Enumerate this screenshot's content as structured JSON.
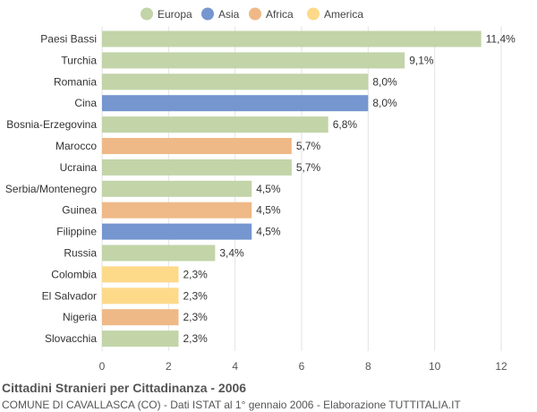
{
  "chart_data": {
    "type": "bar",
    "orientation": "horizontal",
    "title": "Cittadini Stranieri per Cittadinanza - 2006",
    "subtitle": "COMUNE DI CAVALLASCA (CO) - Dati ISTAT al 1° gennaio 2006 - Elaborazione TUTTITALIA.IT",
    "xlim": [
      0,
      12
    ],
    "xticks": [
      "0",
      "2",
      "4",
      "6",
      "8",
      "10",
      "12"
    ],
    "grid": true,
    "legend_position": "top",
    "legend": [
      {
        "name": "Europa",
        "color": "#c2d4a8"
      },
      {
        "name": "Asia",
        "color": "#7596cf"
      },
      {
        "name": "Africa",
        "color": "#efb987"
      },
      {
        "name": "America",
        "color": "#fdd98a"
      }
    ],
    "bars": [
      {
        "category": "Paesi Bassi",
        "value": 11.4,
        "label": "11,4%",
        "group": "Europa"
      },
      {
        "category": "Turchia",
        "value": 9.1,
        "label": "9,1%",
        "group": "Europa"
      },
      {
        "category": "Romania",
        "value": 8.0,
        "label": "8,0%",
        "group": "Europa"
      },
      {
        "category": "Cina",
        "value": 8.0,
        "label": "8,0%",
        "group": "Asia"
      },
      {
        "category": "Bosnia-Erzegovina",
        "value": 6.8,
        "label": "6,8%",
        "group": "Europa"
      },
      {
        "category": "Marocco",
        "value": 5.7,
        "label": "5,7%",
        "group": "Africa"
      },
      {
        "category": "Ucraina",
        "value": 5.7,
        "label": "5,7%",
        "group": "Europa"
      },
      {
        "category": "Serbia/Montenegro",
        "value": 4.5,
        "label": "4,5%",
        "group": "Europa"
      },
      {
        "category": "Guinea",
        "value": 4.5,
        "label": "4,5%",
        "group": "Africa"
      },
      {
        "category": "Filippine",
        "value": 4.5,
        "label": "4,5%",
        "group": "Asia"
      },
      {
        "category": "Russia",
        "value": 3.4,
        "label": "3,4%",
        "group": "Europa"
      },
      {
        "category": "Colombia",
        "value": 2.3,
        "label": "2,3%",
        "group": "America"
      },
      {
        "category": "El Salvador",
        "value": 2.3,
        "label": "2,3%",
        "group": "America"
      },
      {
        "category": "Nigeria",
        "value": 2.3,
        "label": "2,3%",
        "group": "Africa"
      },
      {
        "category": "Slovacchia",
        "value": 2.3,
        "label": "2,3%",
        "group": "Europa"
      }
    ]
  }
}
